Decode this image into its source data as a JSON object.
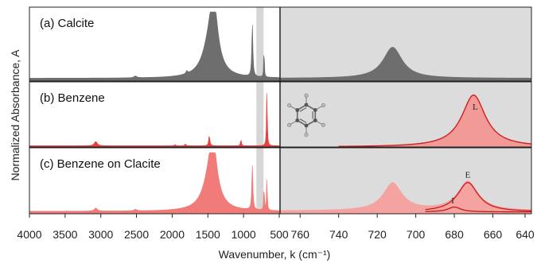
{
  "figure": {
    "ylabel": "Normalized Absorbance, A",
    "xlabel": "Wavenumber, k (cm⁻¹)"
  },
  "chart_data": {
    "type": "area",
    "axes": {
      "left": {
        "xlim": [
          4000,
          500
        ],
        "ticks": [
          4000,
          3500,
          3000,
          2500,
          2000,
          1500,
          1000,
          500
        ],
        "tick_labels": [
          "4000",
          "3500",
          "3000",
          "2500",
          "2000",
          "1500",
          "1000",
          "500"
        ],
        "shaded_band": [
          820,
          720
        ]
      },
      "right": {
        "xlim": [
          770,
          640
        ],
        "ticks": [
          760,
          740,
          720,
          700,
          680,
          660,
          640
        ],
        "tick_labels": [
          "760",
          "740",
          "720",
          "700",
          "680",
          "660",
          "640"
        ],
        "background": "shaded"
      }
    },
    "panels": [
      {
        "label": "(a) Calcite",
        "color": "#6e6e6e",
        "left_peaks": [
          {
            "center": 1420,
            "height": 0.92,
            "width": 70
          },
          {
            "center": 1480,
            "height": 0.35,
            "width": 120
          },
          {
            "center": 877,
            "height": 0.78,
            "width": 9
          },
          {
            "center": 713,
            "height": 0.48,
            "width": 5
          },
          {
            "center": 2515,
            "height": 0.025,
            "width": 25
          },
          {
            "center": 1795,
            "height": 0.04,
            "width": 12
          }
        ],
        "right_peaks": [
          {
            "center": 712,
            "height": 0.45,
            "width": 6
          }
        ]
      },
      {
        "label": "(b) Benzene",
        "color": "#e8403f",
        "left_peaks": [
          {
            "center": 673,
            "height": 0.97,
            "width": 6
          },
          {
            "center": 1480,
            "height": 0.17,
            "width": 10
          },
          {
            "center": 1036,
            "height": 0.1,
            "width": 8
          },
          {
            "center": 3070,
            "height": 0.07,
            "width": 25
          },
          {
            "center": 1815,
            "height": 0.03,
            "width": 10
          },
          {
            "center": 1960,
            "height": 0.02,
            "width": 10
          }
        ],
        "right_peaks": [
          {
            "center": 670,
            "height": 0.86,
            "width": 7.5,
            "label": "L"
          }
        ]
      },
      {
        "label": "(c) Benzene on Clacite",
        "color": "#f07b78",
        "left_peaks": [
          {
            "center": 1430,
            "height": 0.92,
            "width": 70
          },
          {
            "center": 1480,
            "height": 0.35,
            "width": 120
          },
          {
            "center": 877,
            "height": 0.75,
            "width": 9
          },
          {
            "center": 713,
            "height": 0.45,
            "width": 5
          },
          {
            "center": 673,
            "height": 0.55,
            "width": 6
          },
          {
            "center": 3070,
            "height": 0.05,
            "width": 25
          },
          {
            "center": 2515,
            "height": 0.025,
            "width": 25
          }
        ],
        "right_peaks": [
          {
            "center": 712,
            "height": 0.45,
            "width": 6
          },
          {
            "center": 673,
            "height": 0.48,
            "width": 6.5,
            "label": "E"
          },
          {
            "center": 680,
            "height": 0.08,
            "width": 4,
            "label": "I"
          }
        ]
      }
    ]
  }
}
